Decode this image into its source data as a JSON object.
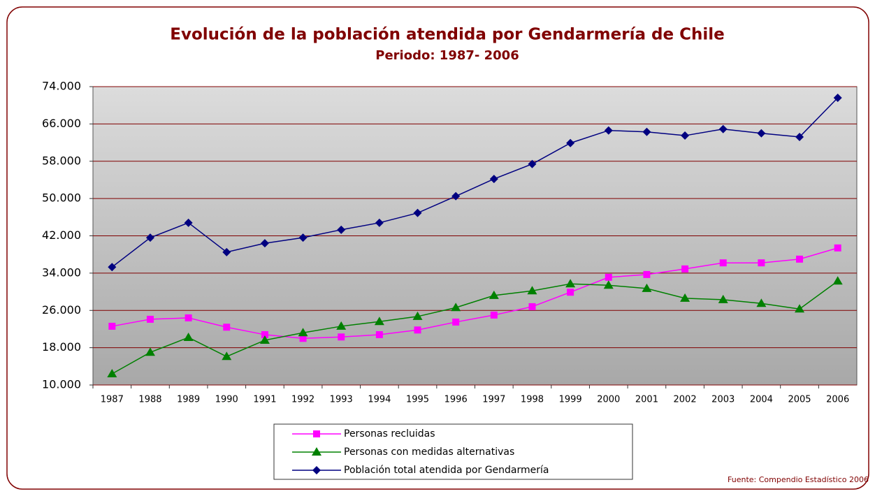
{
  "chart_data": {
    "type": "line",
    "title": "Evolución de la población atendida por Gendarmería de Chile",
    "subtitle": "Periodo: 1987- 2006",
    "source": "Fuente: Compendio Estadístico 2006",
    "categories": [
      "1987",
      "1988",
      "1989",
      "1990",
      "1991",
      "1992",
      "1993",
      "1994",
      "1995",
      "1996",
      "1997",
      "1998",
      "1999",
      "2000",
      "2001",
      "2002",
      "2003",
      "2004",
      "2005",
      "2006"
    ],
    "series": [
      {
        "name": "Personas recluidas",
        "color": "#ff00ff",
        "marker": "square",
        "values": [
          22600,
          24100,
          24400,
          22400,
          20800,
          20000,
          20300,
          20800,
          21800,
          23500,
          25000,
          26800,
          29900,
          33100,
          33700,
          34900,
          36200,
          36200,
          37000,
          39400
        ]
      },
      {
        "name": "Personas con medidas alternativas",
        "color": "#008000",
        "marker": "triangle",
        "values": [
          12400,
          17000,
          20200,
          16100,
          19600,
          21200,
          22600,
          23600,
          24700,
          26600,
          29200,
          30200,
          31700,
          31400,
          30700,
          28600,
          28300,
          27500,
          26300,
          32300
        ]
      },
      {
        "name": "Población total atendida por Gendarmería",
        "color": "#000080",
        "marker": "diamond",
        "values": [
          35300,
          41600,
          44800,
          38500,
          40400,
          41600,
          43300,
          44800,
          46900,
          50500,
          54200,
          57400,
          61900,
          64600,
          64300,
          63500,
          64900,
          64000,
          63200,
          71600
        ]
      }
    ],
    "ylim": [
      10000,
      74000
    ],
    "yticks": [
      {
        "value": 10000,
        "label": "10.000"
      },
      {
        "value": 18000,
        "label": "18.000"
      },
      {
        "value": 26000,
        "label": "26.000"
      },
      {
        "value": 34000,
        "label": "34.000"
      },
      {
        "value": 42000,
        "label": "42.000"
      },
      {
        "value": 50000,
        "label": "50.000"
      },
      {
        "value": 58000,
        "label": "58.000"
      },
      {
        "value": 66000,
        "label": "66.000"
      },
      {
        "value": 74000,
        "label": "74.000"
      }
    ],
    "grid": true,
    "legend": "bottom"
  }
}
